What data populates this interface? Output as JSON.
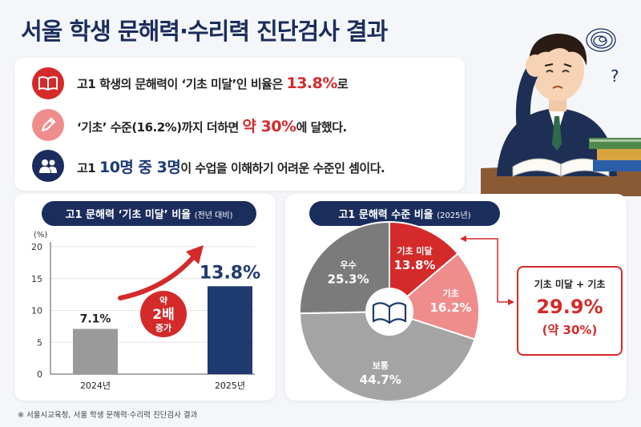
{
  "title": "서울 학생 문해력·수리력 진단검사 결과",
  "summary": {
    "line1": {
      "pre": "고1 학생의 문해력이 ‘기초 미달’인 비율은 ",
      "highlight": "13.8%",
      "post": "로"
    },
    "line2": {
      "pre": "‘기초’ 수준(16.2%)까지 더하면 ",
      "highlight": "약 30%",
      "post": "에 달했다."
    },
    "line3": {
      "pre": "고1 ",
      "highlight": "10명 중 3명",
      "post": "이 수업을 이해하기 어려운 수준인 셈이다."
    }
  },
  "icons": {
    "line1": "book-icon",
    "line2": "pencil-icon",
    "line3": "people-icon",
    "pie_center": "book-icon",
    "illustration": "worried-student-illustration"
  },
  "colors": {
    "navy": "#1f3a6e",
    "red": "#d42a2a",
    "pink": "#ef8d8d",
    "gray_dark": "#7b7b7b",
    "gray_light": "#a4a4a4"
  },
  "bar_panel": {
    "title": "고1 문해력 ‘기초 미달’ 비율",
    "title_note": "(전년 대비)",
    "badge": {
      "l1": "약",
      "l2": "2배",
      "l3": "증가"
    }
  },
  "pie_panel": {
    "title": "고1 문해력 수준 비율",
    "title_note": "(2025년)",
    "callout": {
      "label": "기초 미달 + 기초",
      "value": "29.9%",
      "sub": "(약 30%)"
    }
  },
  "chart_data": [
    {
      "type": "bar",
      "categories": [
        "2024년",
        "2025년"
      ],
      "values": [
        7.1,
        13.8
      ],
      "value_labels": [
        "7.1%",
        "13.8%"
      ],
      "ylabel": "(%)",
      "ylim": [
        0,
        20
      ],
      "yticks": [
        0,
        5,
        10,
        15,
        20
      ],
      "colors": [
        "#9a9a9a",
        "#1f3a6e"
      ]
    },
    {
      "type": "pie",
      "slices": [
        {
          "label": "기초 미달",
          "value": 13.8,
          "display": "13.8%",
          "color": "#d42a2a"
        },
        {
          "label": "기초",
          "value": 16.2,
          "display": "16.2%",
          "color": "#ef8d8d"
        },
        {
          "label": "보통",
          "value": 44.7,
          "display": "44.7%",
          "color": "#a4a4a4"
        },
        {
          "label": "우수",
          "value": 25.3,
          "display": "25.3%",
          "color": "#7b7b7b"
        }
      ]
    }
  ],
  "footer": "※ 서울시교육청, 서울 학생 문해력·수리력 진단검사 결과"
}
